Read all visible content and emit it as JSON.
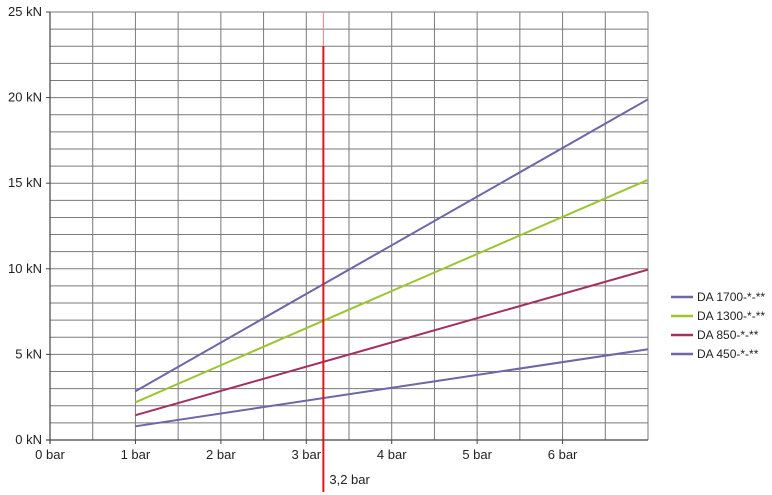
{
  "chart_data": {
    "type": "line",
    "x_unit": "bar",
    "y_unit": "kN",
    "xlim": [
      0,
      7
    ],
    "ylim": [
      0,
      25
    ],
    "x_ticks": [
      {
        "value": 0,
        "label": "0 bar"
      },
      {
        "value": 1,
        "label": "1 bar"
      },
      {
        "value": 2,
        "label": "2 bar"
      },
      {
        "value": 3,
        "label": "3 bar"
      },
      {
        "value": 4,
        "label": "4 bar"
      },
      {
        "value": 5,
        "label": "5 bar"
      },
      {
        "value": 6,
        "label": "6 bar"
      }
    ],
    "y_ticks": [
      {
        "value": 0,
        "label": "0 kN"
      },
      {
        "value": 5,
        "label": "5 kN"
      },
      {
        "value": 10,
        "label": "10 kN"
      },
      {
        "value": 15,
        "label": "15 kN"
      },
      {
        "value": 20,
        "label": "20 kN"
      },
      {
        "value": 25,
        "label": "25 kN"
      }
    ],
    "grid": true,
    "grid_minor_y_step": 1,
    "grid_x_step": 0.5,
    "legend_position": "right",
    "series": [
      {
        "name": "DA 1700-*-**",
        "color": "#6b67a8",
        "points": [
          [
            1,
            2.85
          ],
          [
            7,
            19.9
          ]
        ]
      },
      {
        "name": "DA 1300-*-**",
        "color": "#9cc531",
        "points": [
          [
            1,
            2.2
          ],
          [
            7,
            15.2
          ]
        ]
      },
      {
        "name": "DA 850-*-**",
        "color": "#a23060",
        "points": [
          [
            1,
            1.45
          ],
          [
            7,
            9.95
          ]
        ]
      },
      {
        "name": "DA 450-*-**",
        "color": "#6b67a8",
        "points": [
          [
            1,
            0.8
          ],
          [
            7,
            5.3
          ]
        ]
      }
    ],
    "annotation": {
      "x": 3.2,
      "label": "3,2 bar",
      "color": "#e0141c"
    }
  }
}
